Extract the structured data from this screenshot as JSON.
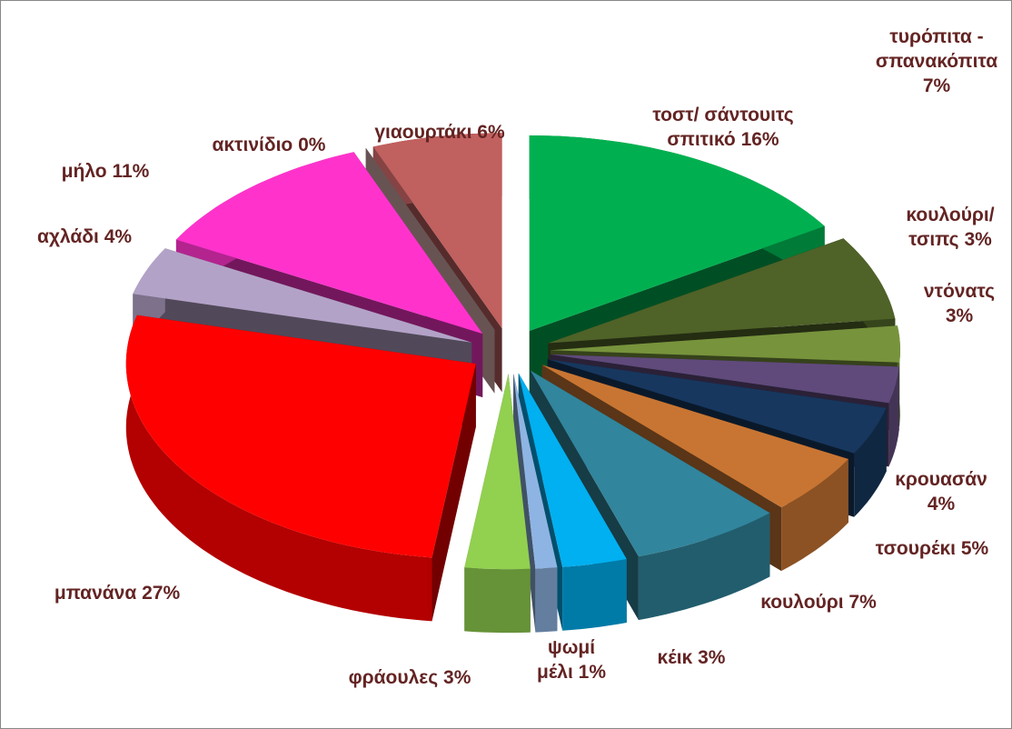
{
  "chart_data": {
    "type": "pie",
    "categories": [
      "τοστ/ σάντουιτς σπιτικό",
      "τυρόπιτα - σπανακόπιτα",
      "κουλούρι/ τσιπς",
      "ντόνατς",
      "κρουασάν",
      "τσουρέκι",
      "κουλούρι",
      "κέικ",
      "ψωμί μέλι",
      "φράουλες",
      "μπανάνα",
      "αχλάδι",
      "μήλο",
      "ακτινίδιο",
      "γιαουρτάκι"
    ],
    "values": [
      16,
      7,
      3,
      3,
      4,
      5,
      7,
      3,
      1,
      3,
      27,
      4,
      11,
      0,
      6
    ],
    "value_labels": [
      "16%",
      "7%",
      "3%",
      "3%",
      "4%",
      "5%",
      "7%",
      "3%",
      "1%",
      "3%",
      "27%",
      "4%",
      "11%",
      "0%",
      "6%"
    ],
    "colors": [
      "#00b050",
      "#4f6228",
      "#77933c",
      "#604a7b",
      "#17375e",
      "#c87533",
      "#31859c",
      "#00b0f0",
      "#8eb4e3",
      "#92d050",
      "#ff0000",
      "#b3a2c7",
      "#ff33cc",
      "#e6b9b8",
      "#c0605f"
    ]
  }
}
